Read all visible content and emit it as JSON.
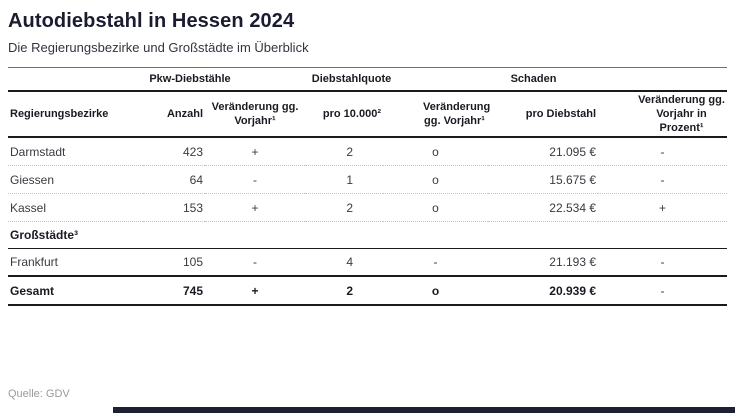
{
  "header": {
    "title": "Autodiebstahl in Hessen 2024",
    "subtitle": "Die Regierungsbezirke und Großstädte im Überblick"
  },
  "table": {
    "group_headers": [
      {
        "label": "Pkw-Diebstähle"
      },
      {
        "label": "Diebstahlquote"
      },
      {
        "label": "Schaden"
      }
    ],
    "columns": [
      "Regierungsbezirke",
      "Anzahl",
      "Veränderung gg. Vorjahr¹",
      "pro 10.000²",
      "Veränderung gg. Vorjahr¹",
      "pro Diebstahl",
      "Veränderung gg. Vorjahr in Prozent¹"
    ],
    "rows": [
      {
        "name": "Darmstadt",
        "anzahl": "423",
        "delta1": "+",
        "quote": "2",
        "delta2": "o",
        "schaden": "21.095 €",
        "delta3": "-"
      },
      {
        "name": "Giessen",
        "anzahl": "64",
        "delta1": "-",
        "quote": "1",
        "delta2": "o",
        "schaden": "15.675 €",
        "delta3": "-"
      },
      {
        "name": "Kassel",
        "anzahl": "153",
        "delta1": "+",
        "quote": "2",
        "delta2": "o",
        "schaden": "22.534 €",
        "delta3": "+"
      }
    ],
    "section_header": "Großstädte³",
    "city_rows": [
      {
        "name": "Frankfurt",
        "anzahl": "105",
        "delta1": "-",
        "quote": "4",
        "delta2": "-",
        "schaden": "21.193 €",
        "delta3": "-"
      }
    ],
    "total_row": {
      "name": "Gesamt",
      "anzahl": "745",
      "delta1": "+",
      "quote": "2",
      "delta2": "o",
      "schaden": "20.939 €",
      "delta3": "-"
    }
  },
  "footer": {
    "source": "Quelle: GDV"
  },
  "colors": {
    "accent_bar": "#1d2033",
    "title": "#1b1c30"
  }
}
